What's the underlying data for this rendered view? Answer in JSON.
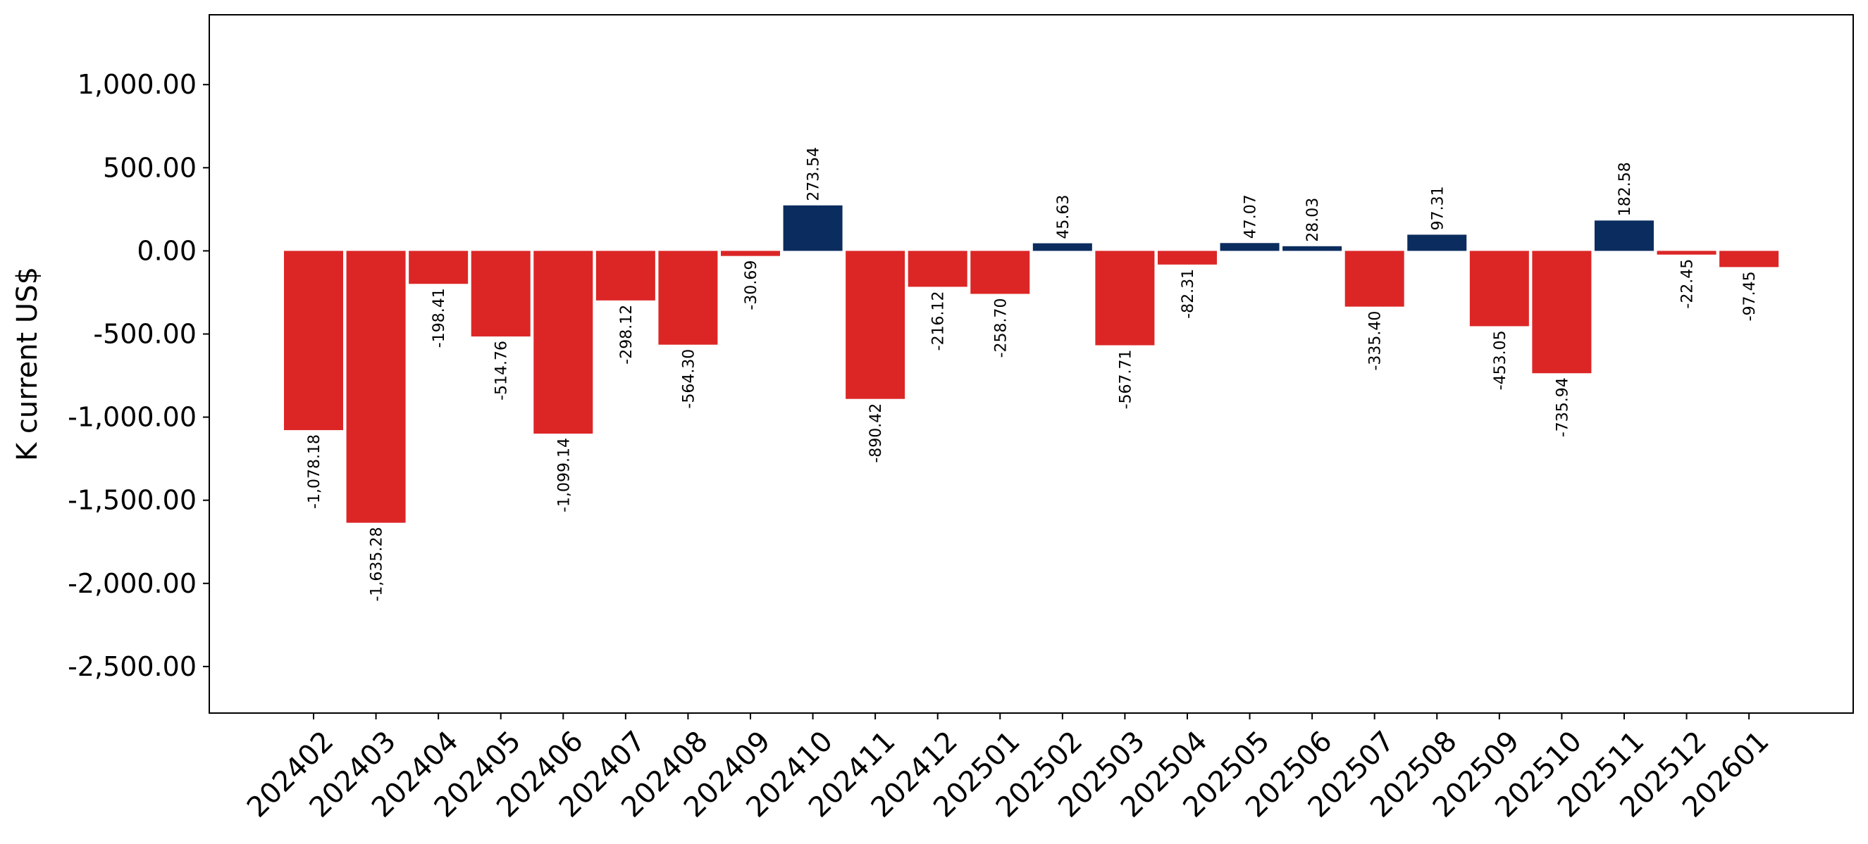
{
  "chart_data": {
    "type": "bar",
    "title": "",
    "xlabel": "",
    "ylabel": "K current US$",
    "ylim": [
      -2780,
      1420
    ],
    "grid": false,
    "legend": "none",
    "colors": {
      "negative": "#DC2626",
      "positive": "#0B2C5E",
      "axis": "#000000",
      "background": "#FFFFFF"
    },
    "yticks": [
      1000,
      500,
      0,
      -500,
      -1000,
      -1500,
      -2000,
      -2500
    ],
    "ytick_labels": [
      "1,000.00",
      "500.00",
      "0.00",
      "-500.00",
      "-1,000.00",
      "-1,500.00",
      "-2,000.00",
      "-2,500.00"
    ],
    "categories": [
      "202402",
      "202403",
      "202404",
      "202405",
      "202406",
      "202407",
      "202408",
      "202409",
      "202410",
      "202411",
      "202412",
      "202501",
      "202502",
      "202503",
      "202504",
      "202505",
      "202506",
      "202507",
      "202508",
      "202509",
      "202510",
      "202511",
      "202512",
      "202601"
    ],
    "values": [
      -1078.18,
      -1635.28,
      -198.41,
      -514.76,
      -1099.14,
      -298.12,
      -564.3,
      -30.69,
      273.54,
      -890.42,
      -216.12,
      -258.7,
      45.63,
      -567.71,
      -82.31,
      47.07,
      28.03,
      -335.4,
      97.31,
      -453.05,
      -735.94,
      182.58,
      -22.45,
      -97.45
    ],
    "value_labels": [
      "-1,078.18",
      "-1,635.28",
      "-198.41",
      "-514.76",
      "-1,099.14",
      "-298.12",
      "-564.30",
      "-30.69",
      "273.54",
      "-890.42",
      "-216.12",
      "-258.70",
      "45.63",
      "-567.71",
      "-82.31",
      "47.07",
      "28.03",
      "-335.40",
      "97.31",
      "-453.05",
      "-735.94",
      "182.58",
      "-22.45",
      "-97.45"
    ]
  }
}
